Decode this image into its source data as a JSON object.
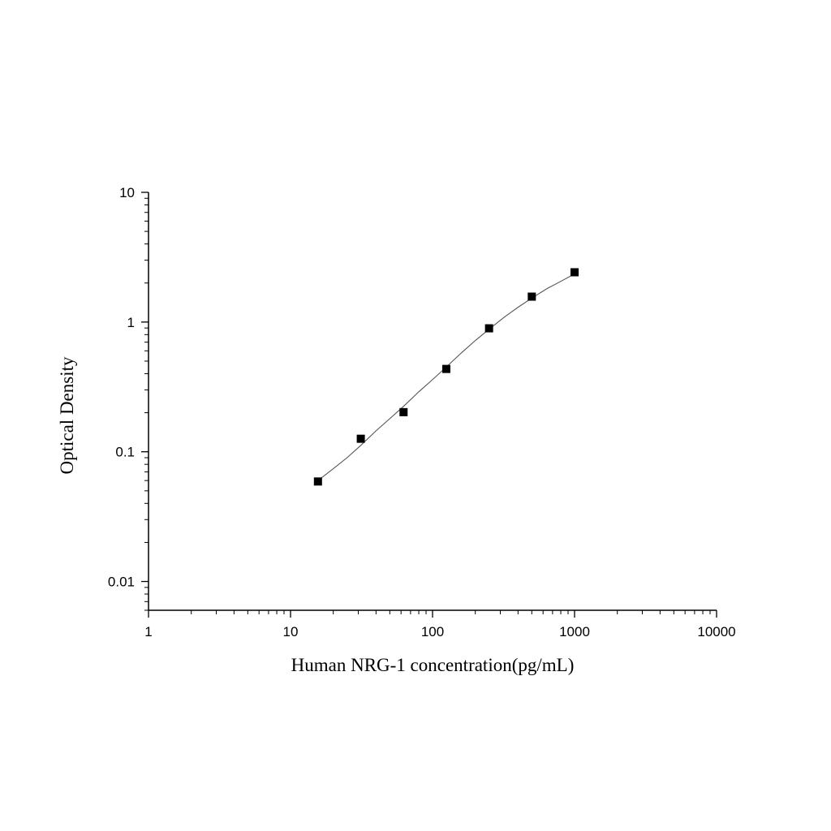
{
  "chart_data": {
    "type": "scatter",
    "title": "",
    "xlabel": "Human NRG-1 concentration(pg/mL)",
    "ylabel": "Optical Density",
    "xscale": "log",
    "yscale": "log",
    "xlim": [
      1,
      10000
    ],
    "ylim": [
      0.006,
      10
    ],
    "x_ticks": [
      1,
      10,
      100,
      1000,
      10000
    ],
    "x_tick_labels": [
      "1",
      "10",
      "100",
      "1000",
      "10000"
    ],
    "y_ticks": [
      0.01,
      0.1,
      1,
      10
    ],
    "y_tick_labels": [
      "0.01",
      "0.1",
      "1",
      "10"
    ],
    "grid": false,
    "legend": "none",
    "series": [
      {
        "marker": "square",
        "color": "#000000",
        "x": [
          15.6,
          31.25,
          62.5,
          125,
          250,
          500,
          1000
        ],
        "y": [
          0.059,
          0.126,
          0.202,
          0.435,
          0.895,
          1.57,
          2.42
        ]
      },
      {
        "style": "fitted-curve",
        "color": "#555555",
        "x": [
          15.6,
          20,
          25,
          31.25,
          40,
          50,
          62.5,
          80,
          100,
          125,
          160,
          200,
          250,
          320,
          400,
          500,
          640,
          800,
          1000
        ],
        "y": [
          0.06,
          0.074,
          0.09,
          0.112,
          0.145,
          0.18,
          0.224,
          0.29,
          0.36,
          0.45,
          0.58,
          0.72,
          0.88,
          1.09,
          1.3,
          1.53,
          1.81,
          2.06,
          2.35
        ]
      }
    ]
  }
}
